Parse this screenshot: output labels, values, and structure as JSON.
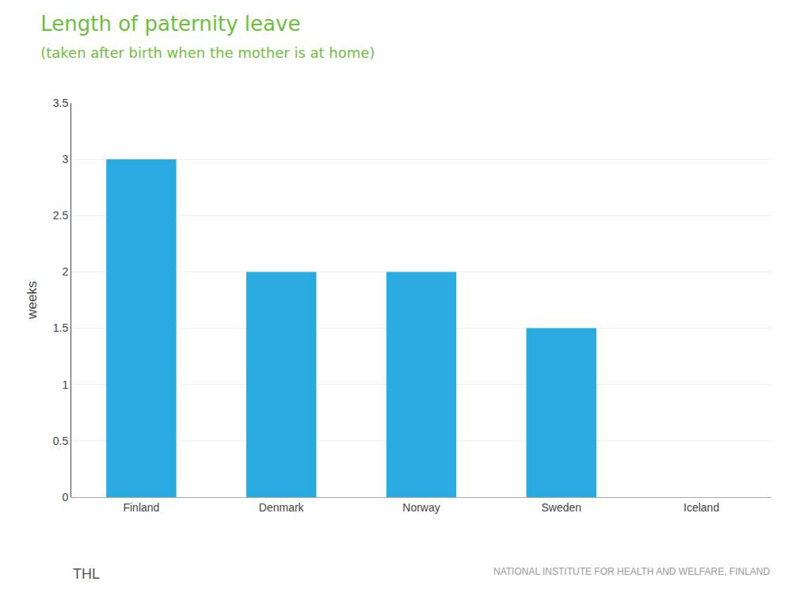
{
  "chart_data": {
    "type": "bar",
    "title": "Length of paternity leave",
    "subtitle": "(taken after birth when the mother is at home)",
    "categories": [
      "Finland",
      "Denmark",
      "Norway",
      "Sweden",
      "Iceland"
    ],
    "values": [
      3.0,
      2.0,
      2.0,
      1.5,
      0.0
    ],
    "color": "#29ABE2",
    "ylabel": "weeks",
    "ylim": [
      0,
      3.5
    ],
    "yticks": [
      0,
      0.5,
      1,
      1.5,
      2,
      2.5,
      3,
      3.5
    ],
    "grid": true,
    "annotations": [
      "THL",
      "NATIONAL INSTITUTE FOR HEALTH AND WELFARE, FINLAND"
    ]
  }
}
